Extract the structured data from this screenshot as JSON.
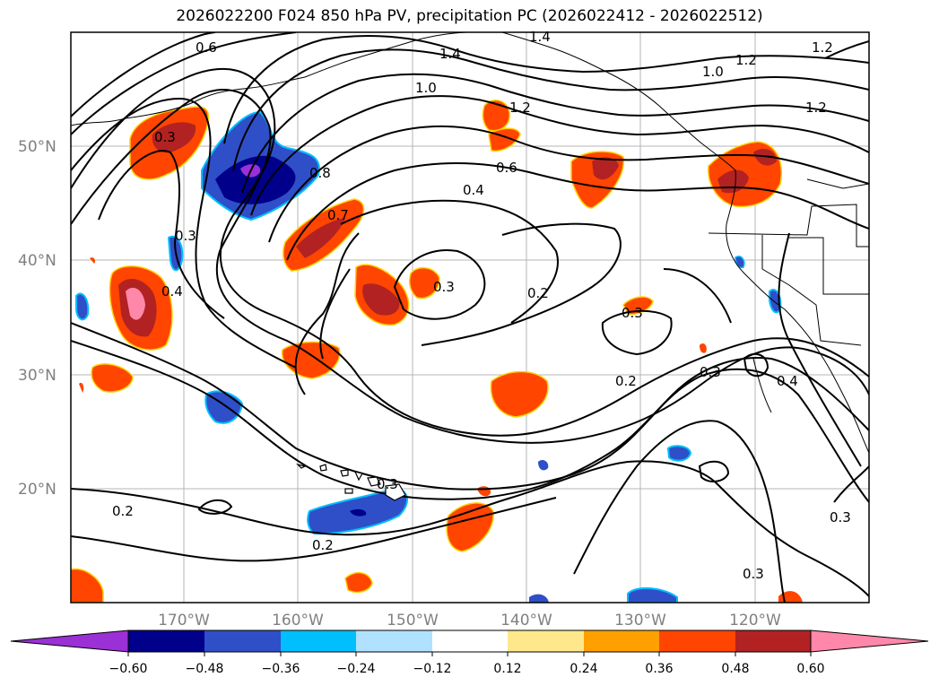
{
  "title": "2026022200 F024 850 hPa PV, precipitation PC (2026022412 - 2026022512)",
  "lat_labels": [
    "50°N",
    "40°N",
    "30°N",
    "20°N"
  ],
  "lon_labels": [
    "170°W",
    "160°W",
    "150°W",
    "140°W",
    "130°W",
    "120°W"
  ],
  "contour_labels": [
    "0.6",
    "1.4",
    "1.4",
    "1.2",
    "1.2",
    "1.0",
    "1.0",
    "1.2",
    "1.2",
    "0.3",
    "0.8",
    "0.7",
    "0.6",
    "0.4",
    "0.3",
    "0.4",
    "0.3",
    "0.2",
    "0.3",
    "0.3",
    "0.2",
    "0.4",
    "0.3",
    "0.2",
    "0.2",
    "0.3",
    "0.3"
  ],
  "colorbar": {
    "ticks": [
      "−0.60",
      "−0.48",
      "−0.36",
      "−0.24",
      "−0.12",
      "0.12",
      "0.24",
      "0.36",
      "0.48",
      "0.60"
    ],
    "colors": [
      "#9b30d6",
      "#00008b",
      "#2f4fc8",
      "#00bfff",
      "#b0e2ff",
      "#ffffff",
      "#ffe88c",
      "#ffa000",
      "#ff4500",
      "#b22222",
      "#ff88aa"
    ]
  }
}
